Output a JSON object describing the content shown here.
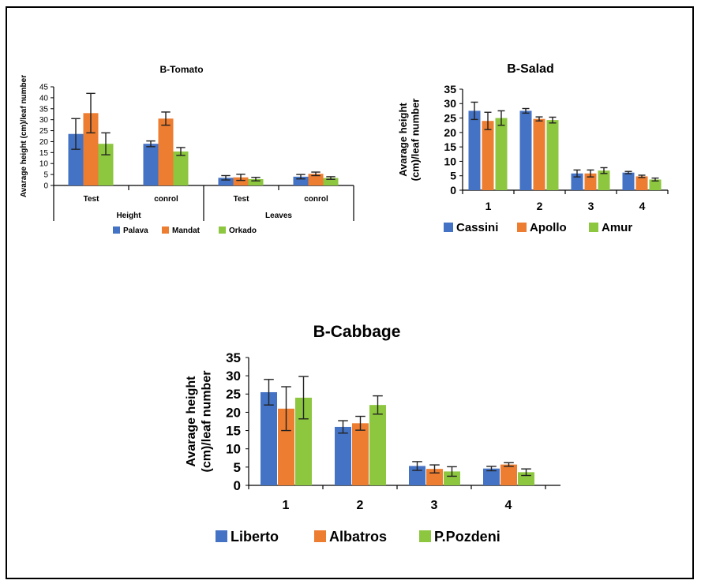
{
  "chart_data": [
    {
      "type": "bar",
      "title": "B-Tomato",
      "ylabel": "Avarage height (cm)/leaf number",
      "ylim": [
        0,
        45
      ],
      "yticks": [
        0,
        5,
        10,
        15,
        20,
        25,
        30,
        35,
        40,
        45
      ],
      "categories": [
        "Test",
        "conrol",
        "Test",
        "conrol"
      ],
      "groups": [
        "Height",
        "Leaves"
      ],
      "legend_position": "bottom",
      "series": [
        {
          "name": "Palava",
          "color": "#4472c4",
          "values": [
            23.5,
            19,
            3.5,
            4
          ],
          "errors": [
            7,
            1.3,
            1,
            1
          ]
        },
        {
          "name": "Mandat",
          "color": "#ed7d31",
          "values": [
            33,
            30.5,
            3.7,
            5.3
          ],
          "errors": [
            9,
            3,
            1.4,
            0.8
          ]
        },
        {
          "name": "Orkado",
          "color": "#8dc63f",
          "values": [
            19,
            15.5,
            2.9,
            3.4
          ],
          "errors": [
            5,
            1.8,
            0.8,
            0.6
          ]
        }
      ]
    },
    {
      "type": "bar",
      "title": "B-Salad",
      "ylabel": "Avarage height (cm)/leaf number",
      "ylim": [
        0,
        35
      ],
      "yticks": [
        0,
        5,
        10,
        15,
        20,
        25,
        30,
        35
      ],
      "categories": [
        "1",
        "2",
        "3",
        "4"
      ],
      "legend_position": "bottom",
      "series": [
        {
          "name": "Cassini",
          "color": "#4472c4",
          "values": [
            27.5,
            27.5,
            5.8,
            6.1
          ],
          "errors": [
            3,
            0.8,
            1.2,
            0.4
          ]
        },
        {
          "name": "Apollo",
          "color": "#ed7d31",
          "values": [
            24,
            24.7,
            5.8,
            4.8
          ],
          "errors": [
            3,
            0.7,
            1.2,
            0.4
          ]
        },
        {
          "name": "Amur",
          "color": "#8dc63f",
          "values": [
            25,
            24.3,
            6.8,
            3.7
          ],
          "errors": [
            2.5,
            1,
            1,
            0.5
          ]
        }
      ]
    },
    {
      "type": "bar",
      "title": "B-Cabbage",
      "ylabel": "Avarage height (cm)/leaf number",
      "ylim": [
        0,
        35
      ],
      "yticks": [
        0,
        5,
        10,
        15,
        20,
        25,
        30,
        35
      ],
      "categories": [
        "1",
        "2",
        "3",
        "4"
      ],
      "legend_position": "bottom",
      "series": [
        {
          "name": "Liberto",
          "color": "#4472c4",
          "values": [
            25.5,
            16,
            5.3,
            4.6
          ],
          "errors": [
            3.5,
            1.7,
            1.2,
            0.6
          ]
        },
        {
          "name": "Albatros",
          "color": "#ed7d31",
          "values": [
            21,
            17,
            4.5,
            5.7
          ],
          "errors": [
            6,
            1.9,
            1.1,
            0.5
          ]
        },
        {
          "name": "P.Pozdeni",
          "color": "#8dc63f",
          "values": [
            24,
            22,
            3.8,
            3.6
          ],
          "errors": [
            5.8,
            2.5,
            1.3,
            0.9
          ]
        }
      ]
    }
  ]
}
